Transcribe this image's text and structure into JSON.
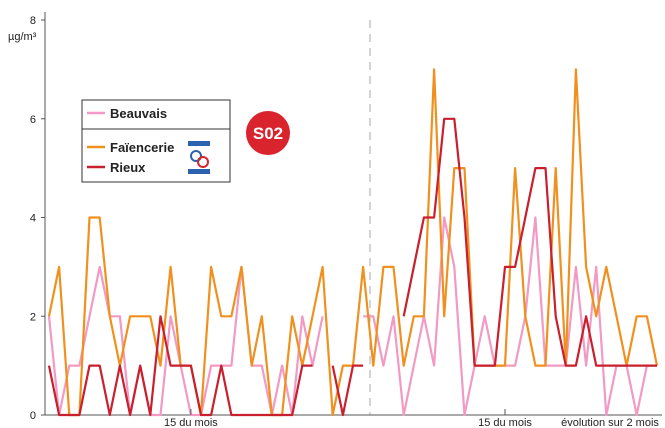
{
  "chart_data": {
    "type": "line",
    "y_label": "µg/m³",
    "x_label": "évolution sur 2 mois",
    "badge": "S02",
    "categories": [
      null,
      null,
      null,
      null,
      null,
      null,
      null,
      null,
      null,
      null,
      null,
      null,
      null,
      null,
      "15 du mois",
      null,
      null,
      null,
      null,
      null,
      null,
      null,
      null,
      null,
      null,
      null,
      null,
      null,
      null,
      null,
      null,
      null,
      null,
      null,
      null,
      null,
      null,
      null,
      null,
      null,
      null,
      null,
      null,
      null,
      null,
      "15 du mois",
      null,
      null,
      null,
      null,
      null,
      null,
      null,
      null,
      null,
      null,
      null,
      null,
      null,
      null,
      null
    ],
    "ylim": [
      0,
      8
    ],
    "yticks": [
      0,
      2,
      4,
      6,
      8
    ],
    "series": [
      {
        "name": "Beauvais",
        "color": "#f29ac3",
        "values": [
          2,
          0,
          1,
          1,
          2,
          3,
          2,
          2,
          0,
          1,
          0,
          0,
          2,
          1,
          0,
          0,
          1,
          1,
          1,
          3,
          1,
          1,
          0,
          1,
          0,
          2,
          1,
          2,
          null,
          null,
          null,
          2,
          2,
          1,
          2,
          0,
          1,
          2,
          1,
          4,
          3,
          0,
          1,
          2,
          1,
          1,
          1,
          2,
          4,
          1,
          1,
          1,
          3,
          1,
          3,
          0,
          1,
          1,
          0,
          1,
          1
        ]
      },
      {
        "name": "Faïencerie",
        "color": "#f0901e",
        "values": [
          2,
          3,
          0,
          0,
          4,
          4,
          2,
          1,
          2,
          2,
          2,
          1,
          3,
          1,
          1,
          0,
          3,
          2,
          2,
          3,
          1,
          2,
          0,
          0,
          2,
          1,
          2,
          3,
          0,
          1,
          1,
          3,
          1,
          3,
          3,
          1,
          2,
          2,
          7,
          2,
          5,
          5,
          1,
          1,
          1,
          1,
          5,
          2,
          1,
          1,
          5,
          1,
          7,
          3,
          2,
          3,
          2,
          1,
          2,
          2,
          1
        ]
      },
      {
        "name": "Rieux",
        "color": "#c8202e",
        "values": [
          1,
          0,
          0,
          0,
          1,
          1,
          0,
          1,
          0,
          1,
          0,
          2,
          1,
          1,
          1,
          0,
          0,
          1,
          0,
          0,
          0,
          0,
          0,
          0,
          0,
          1,
          1,
          null,
          1,
          0,
          1,
          1,
          null,
          null,
          null,
          2,
          3,
          4,
          4,
          6,
          6,
          4,
          1,
          1,
          1,
          3,
          3,
          4,
          5,
          5,
          2,
          1,
          1,
          2,
          1,
          1,
          1,
          1,
          1,
          1,
          1
        ]
      }
    ]
  }
}
